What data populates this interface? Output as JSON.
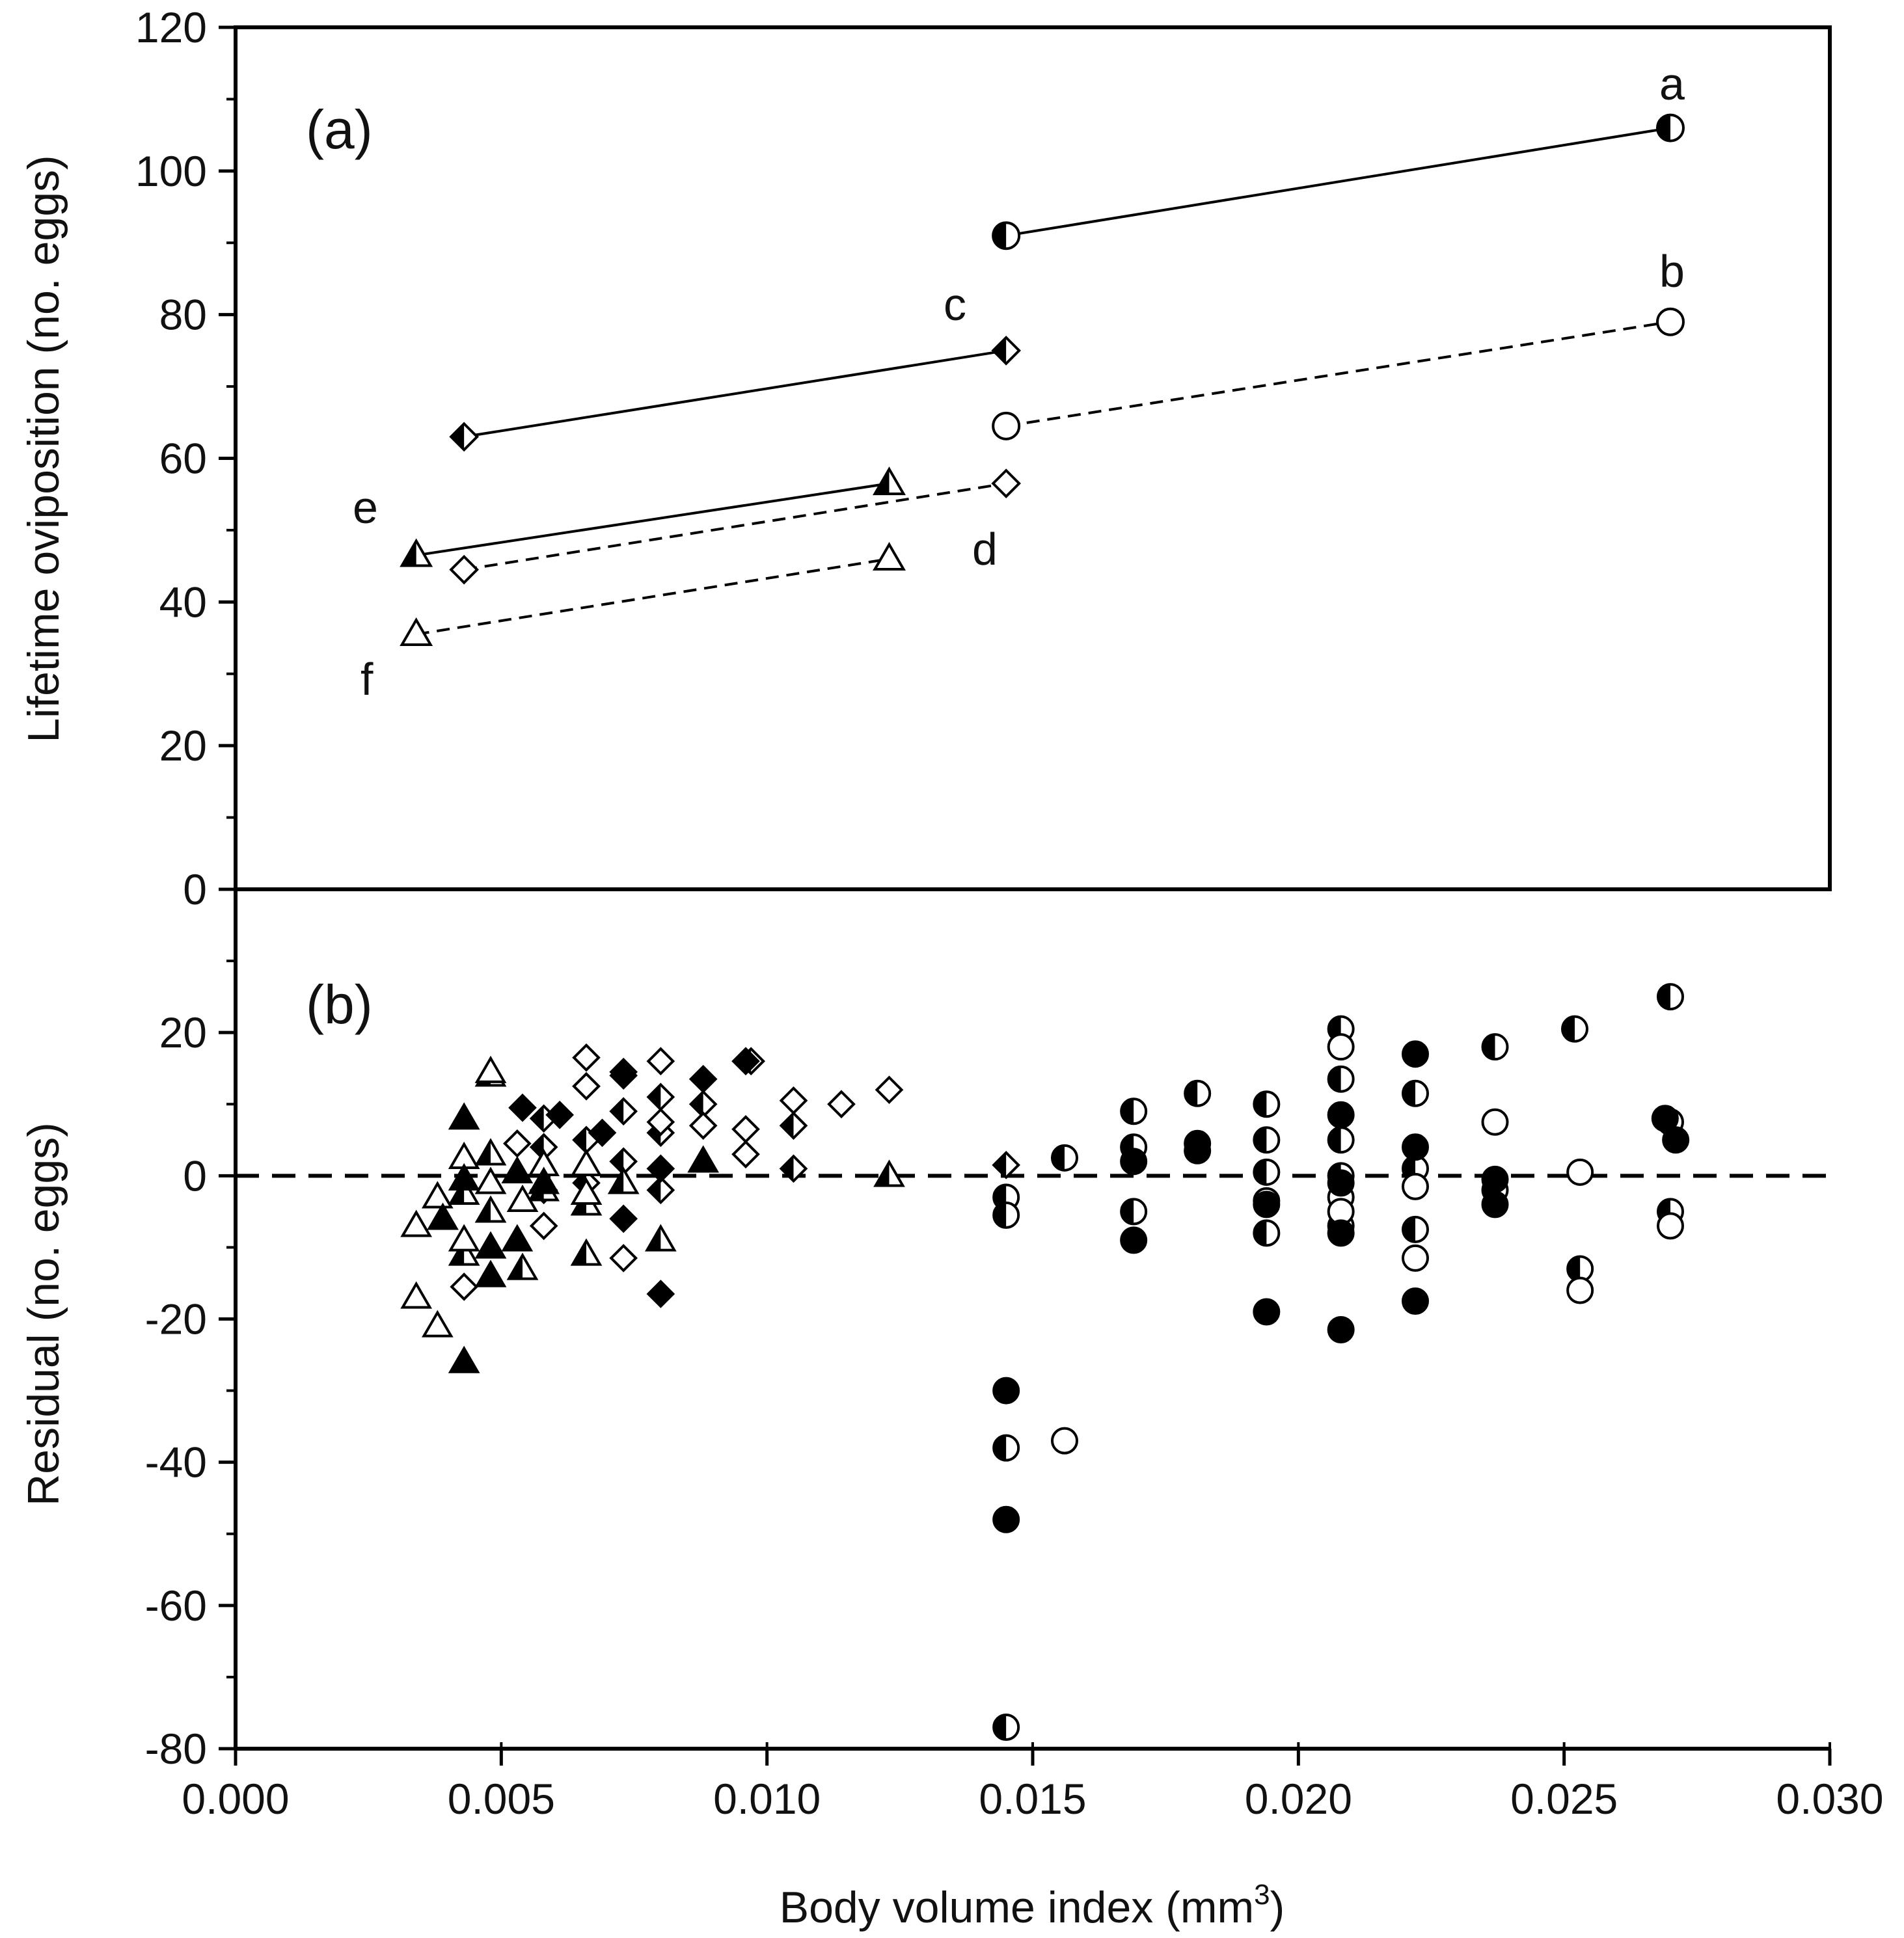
{
  "chart_data": [
    {
      "type": "line",
      "panel_label": "(a)",
      "ylabel": "Lifetime oviposition (no. eggs)",
      "xlabel": "",
      "xlim": [
        0.0,
        0.03
      ],
      "ylim": [
        0,
        120
      ],
      "yticks": [
        "0",
        "20",
        "40",
        "60",
        "80",
        "100",
        "120"
      ],
      "grid": false,
      "series": [
        {
          "name": "a",
          "style": "solid",
          "marker": "circle-half",
          "x": [
            0.0145,
            0.027
          ],
          "y": [
            91,
            106
          ]
        },
        {
          "name": "b",
          "style": "dashed",
          "marker": "circle-open",
          "x": [
            0.0145,
            0.027
          ],
          "y": [
            64.5,
            79
          ]
        },
        {
          "name": "c",
          "style": "solid",
          "marker": "diamond-half",
          "x": [
            0.0043,
            0.0145
          ],
          "y": [
            63,
            75
          ]
        },
        {
          "name": "d",
          "style": "dashed",
          "marker": "diamond-open",
          "x": [
            0.0043,
            0.0145
          ],
          "y": [
            44.5,
            56.5
          ]
        },
        {
          "name": "e",
          "style": "solid",
          "marker": "triangle-half",
          "x": [
            0.0034,
            0.0123
          ],
          "y": [
            46.5,
            56.5
          ]
        },
        {
          "name": "f",
          "style": "dashed",
          "marker": "triangle-open",
          "x": [
            0.0034,
            0.0123
          ],
          "y": [
            35.5,
            46
          ]
        }
      ]
    },
    {
      "type": "scatter",
      "panel_label": "(b)",
      "ylabel": "Residual (no. eggs)",
      "xlabel": "Body volume index (mm3)",
      "xlim": [
        0.0,
        0.03
      ],
      "ylim": [
        -80,
        40
      ],
      "xticks": [
        "0.000",
        "0.005",
        "0.010",
        "0.015",
        "0.020",
        "0.025",
        "0.030"
      ],
      "yticks": [
        "-80",
        "-60",
        "-40",
        "-20",
        "0",
        "20"
      ],
      "reference_line": 0,
      "grid": false,
      "series": [
        {
          "name": "circle-half",
          "points": [
            [
              0.0145,
              -3
            ],
            [
              0.0145,
              -5.5
            ],
            [
              0.0145,
              -38
            ],
            [
              0.0145,
              -77
            ],
            [
              0.0156,
              2.5
            ],
            [
              0.0169,
              9
            ],
            [
              0.0169,
              4
            ],
            [
              0.0169,
              -5
            ],
            [
              0.0181,
              11.5
            ],
            [
              0.0194,
              10
            ],
            [
              0.0194,
              5
            ],
            [
              0.0194,
              0.5
            ],
            [
              0.0194,
              -8
            ],
            [
              0.0208,
              20.5
            ],
            [
              0.0208,
              13.5
            ],
            [
              0.0208,
              5
            ],
            [
              0.0208,
              0
            ],
            [
              0.0208,
              -7
            ],
            [
              0.0222,
              11.5
            ],
            [
              0.0222,
              1
            ],
            [
              0.0222,
              -7.5
            ],
            [
              0.0237,
              18
            ],
            [
              0.0237,
              -2
            ],
            [
              0.0252,
              20.5
            ],
            [
              0.0253,
              -13
            ],
            [
              0.027,
              25
            ],
            [
              0.027,
              7.5
            ],
            [
              0.027,
              -5
            ]
          ]
        },
        {
          "name": "circle-open",
          "points": [
            [
              0.0156,
              -37
            ],
            [
              0.0194,
              -3.5
            ],
            [
              0.0208,
              18
            ],
            [
              0.0208,
              -3
            ],
            [
              0.0208,
              -5
            ],
            [
              0.0222,
              -1.5
            ],
            [
              0.0222,
              -11.5
            ],
            [
              0.0237,
              7.5
            ],
            [
              0.0253,
              0.5
            ],
            [
              0.0253,
              -16
            ],
            [
              0.027,
              -7
            ]
          ]
        },
        {
          "name": "circle-filled",
          "points": [
            [
              0.0145,
              -30
            ],
            [
              0.0145,
              -48
            ],
            [
              0.0169,
              2
            ],
            [
              0.0169,
              -9
            ],
            [
              0.0181,
              4.5
            ],
            [
              0.0181,
              3.5
            ],
            [
              0.0194,
              -4
            ],
            [
              0.0194,
              -19
            ],
            [
              0.0208,
              8.5
            ],
            [
              0.0208,
              -1
            ],
            [
              0.0208,
              -8
            ],
            [
              0.0208,
              -21.5
            ],
            [
              0.0222,
              17
            ],
            [
              0.0222,
              4
            ],
            [
              0.0222,
              -17.5
            ],
            [
              0.0237,
              -0.5
            ],
            [
              0.0237,
              -4
            ],
            [
              0.0269,
              8
            ],
            [
              0.0271,
              5
            ]
          ]
        },
        {
          "name": "diamond-half",
          "points": [
            [
              0.0058,
              8
            ],
            [
              0.0058,
              4
            ],
            [
              0.0058,
              -2
            ],
            [
              0.0066,
              12.5
            ],
            [
              0.0066,
              5
            ],
            [
              0.0066,
              -1
            ],
            [
              0.0073,
              14.5
            ],
            [
              0.0073,
              9
            ],
            [
              0.0073,
              2
            ],
            [
              0.008,
              11
            ],
            [
              0.008,
              6
            ],
            [
              0.008,
              -2
            ],
            [
              0.0088,
              10
            ],
            [
              0.0097,
              16
            ],
            [
              0.0105,
              7
            ],
            [
              0.0105,
              1
            ],
            [
              0.0145,
              1.5
            ]
          ]
        },
        {
          "name": "diamond-open",
          "points": [
            [
              0.0043,
              -15.5
            ],
            [
              0.0053,
              4.5
            ],
            [
              0.0058,
              -7
            ],
            [
              0.0066,
              16.5
            ],
            [
              0.0066,
              12.5
            ],
            [
              0.0073,
              -11.5
            ],
            [
              0.008,
              16
            ],
            [
              0.008,
              7.5
            ],
            [
              0.0088,
              7
            ],
            [
              0.0096,
              6.5
            ],
            [
              0.0096,
              3
            ],
            [
              0.0105,
              10.5
            ],
            [
              0.0114,
              10
            ],
            [
              0.0123,
              12
            ]
          ]
        },
        {
          "name": "diamond-filled",
          "points": [
            [
              0.0054,
              9.5
            ],
            [
              0.0061,
              8.5
            ],
            [
              0.0069,
              6
            ],
            [
              0.0073,
              14
            ],
            [
              0.0073,
              -6
            ],
            [
              0.008,
              1
            ],
            [
              0.008,
              -16.5
            ],
            [
              0.0088,
              13.5
            ],
            [
              0.0096,
              16
            ]
          ]
        },
        {
          "name": "triangle-half",
          "points": [
            [
              0.0043,
              -2.5
            ],
            [
              0.0043,
              -11
            ],
            [
              0.0048,
              14
            ],
            [
              0.0048,
              3
            ],
            [
              0.0048,
              -5
            ],
            [
              0.0054,
              -13
            ],
            [
              0.0058,
              -2
            ],
            [
              0.0066,
              -11
            ],
            [
              0.0066,
              -4
            ],
            [
              0.0073,
              -1
            ],
            [
              0.008,
              -9
            ],
            [
              0.0123,
              0
            ]
          ]
        },
        {
          "name": "triangle-open",
          "points": [
            [
              0.0034,
              -7
            ],
            [
              0.0034,
              -17
            ],
            [
              0.0038,
              -3
            ],
            [
              0.0038,
              -21
            ],
            [
              0.0043,
              2.5
            ],
            [
              0.0043,
              -9
            ],
            [
              0.0048,
              14.5
            ],
            [
              0.0048,
              -1
            ],
            [
              0.0054,
              -3.5
            ],
            [
              0.0058,
              1.5
            ],
            [
              0.0066,
              1.5
            ],
            [
              0.0066,
              -2.5
            ]
          ]
        },
        {
          "name": "triangle-filled",
          "points": [
            [
              0.0039,
              -6
            ],
            [
              0.0043,
              8
            ],
            [
              0.0043,
              -0.5
            ],
            [
              0.0043,
              -26
            ],
            [
              0.0048,
              -14
            ],
            [
              0.0048,
              -10
            ],
            [
              0.0053,
              0.5
            ],
            [
              0.0053,
              -9
            ],
            [
              0.0058,
              -1
            ],
            [
              0.0088,
              2
            ]
          ]
        }
      ]
    }
  ],
  "labels": {
    "panel_a": "(a)",
    "panel_b": "(b)",
    "series_a": "a",
    "series_b": "b",
    "series_c": "c",
    "series_d": "d",
    "series_e": "e",
    "series_f": "f",
    "ylabel_a": "Lifetime oviposition (no. eggs)",
    "ylabel_b": "Residual (no. eggs)",
    "xlabel_main": "Body volume index (mm",
    "xlabel_sup": "3",
    "xlabel_close": ")"
  },
  "colors": {
    "ink": "#000000",
    "background": "#ffffff"
  }
}
